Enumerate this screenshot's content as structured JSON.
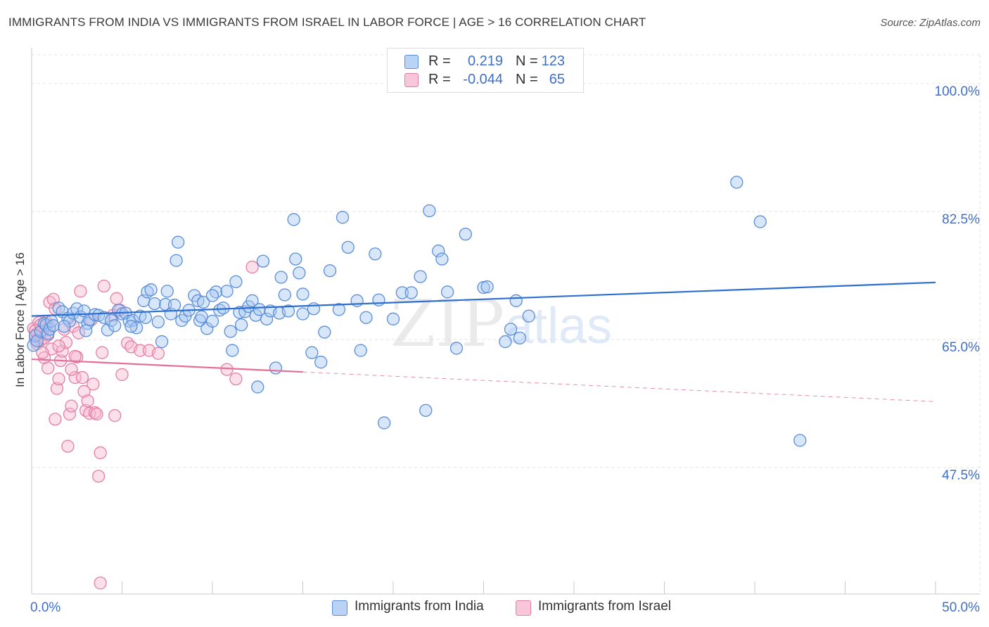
{
  "title": "IMMIGRANTS FROM INDIA VS IMMIGRANTS FROM ISRAEL IN LABOR FORCE | AGE > 16 CORRELATION CHART",
  "source": "Source: ZipAtlas.com",
  "watermark": {
    "zip": "ZIP",
    "atlas": "atlas"
  },
  "legend_top": [
    {
      "r_label": "R =",
      "r_value": "0.219",
      "n_label": "N =",
      "n_value": "123"
    },
    {
      "r_label": "R =",
      "r_value": "-0.044",
      "n_label": "N =",
      "n_value": "65"
    }
  ],
  "colors": {
    "india_fill": "#a9c8f5",
    "india_stroke": "#5b8ed8",
    "india_line": "#2d6fd0",
    "israel_fill": "#f6b8cf",
    "israel_stroke": "#e57fa5",
    "israel_line": "#e4709a",
    "axis_label": "#3d6fd0",
    "grid": "#e3e3e3"
  },
  "chart_data": {
    "type": "scatter",
    "title": "IMMIGRANTS FROM INDIA VS IMMIGRANTS FROM ISRAEL IN LABOR FORCE | AGE > 16 CORRELATION CHART",
    "xlabel": "",
    "ylabel": "In Labor Force | Age > 16",
    "xlim": [
      0,
      50
    ],
    "ylim": [
      30.2,
      104.5
    ],
    "x_tick_labels": [
      "0.0%",
      "50.0%"
    ],
    "y_ticks": [
      47.5,
      65.0,
      82.5,
      100.0
    ],
    "y_tick_labels": [
      "47.5%",
      "65.0%",
      "82.5%",
      "100.0%"
    ],
    "grid": true,
    "legend_placement": "bottom",
    "series": [
      {
        "name": "Immigrants from India",
        "color": "#a9c8f5",
        "trend": {
          "x": [
            0,
            50
          ],
          "y": [
            68.2,
            72.8
          ],
          "dashed_from": null
        },
        "points": [
          [
            0.1,
            64.2
          ],
          [
            0.2,
            65.5
          ],
          [
            0.3,
            64.8
          ],
          [
            0.5,
            66.1
          ],
          [
            0.7,
            67.2
          ],
          [
            0.8,
            67.0
          ],
          [
            0.9,
            65.8
          ],
          [
            1.0,
            66.4
          ],
          [
            1.1,
            67.5
          ],
          [
            1.2,
            66.9
          ],
          [
            1.5,
            69.3
          ],
          [
            1.7,
            68.8
          ],
          [
            2.0,
            67.9
          ],
          [
            2.1,
            67.5
          ],
          [
            2.3,
            68.6
          ],
          [
            2.5,
            69.2
          ],
          [
            2.7,
            68.1
          ],
          [
            2.9,
            68.9
          ],
          [
            3.1,
            67.2
          ],
          [
            3.2,
            67.7
          ],
          [
            3.5,
            68.4
          ],
          [
            3.7,
            68.3
          ],
          [
            4.0,
            68.0
          ],
          [
            4.2,
            66.3
          ],
          [
            4.4,
            67.6
          ],
          [
            4.6,
            66.9
          ],
          [
            4.8,
            69.0
          ],
          [
            5.0,
            68.5
          ],
          [
            5.2,
            68.6
          ],
          [
            5.4,
            67.5
          ],
          [
            5.6,
            67.6
          ],
          [
            5.8,
            66.6
          ],
          [
            6.0,
            68.2
          ],
          [
            6.2,
            70.3
          ],
          [
            6.4,
            71.5
          ],
          [
            6.6,
            71.8
          ],
          [
            6.8,
            69.9
          ],
          [
            7.0,
            67.4
          ],
          [
            7.2,
            64.7
          ],
          [
            7.4,
            69.8
          ],
          [
            7.5,
            71.6
          ],
          [
            7.7,
            68.5
          ],
          [
            7.9,
            69.7
          ],
          [
            8.0,
            75.8
          ],
          [
            8.1,
            78.3
          ],
          [
            8.3,
            67.6
          ],
          [
            8.5,
            68.2
          ],
          [
            8.7,
            69.0
          ],
          [
            9.0,
            71.0
          ],
          [
            9.2,
            70.3
          ],
          [
            9.3,
            67.6
          ],
          [
            9.4,
            68.1
          ],
          [
            9.5,
            70.1
          ],
          [
            9.7,
            66.5
          ],
          [
            10.0,
            67.5
          ],
          [
            10.2,
            71.5
          ],
          [
            10.4,
            69.0
          ],
          [
            10.6,
            69.3
          ],
          [
            10.8,
            71.6
          ],
          [
            11.0,
            66.1
          ],
          [
            11.1,
            63.5
          ],
          [
            11.3,
            72.9
          ],
          [
            11.5,
            68.7
          ],
          [
            11.8,
            68.8
          ],
          [
            12.0,
            69.5
          ],
          [
            12.2,
            70.3
          ],
          [
            12.4,
            68.3
          ],
          [
            12.6,
            69.1
          ],
          [
            12.8,
            75.7
          ],
          [
            13.0,
            67.8
          ],
          [
            13.2,
            68.9
          ],
          [
            13.5,
            61.1
          ],
          [
            13.7,
            68.6
          ],
          [
            13.8,
            73.5
          ],
          [
            14.0,
            71.1
          ],
          [
            14.2,
            68.9
          ],
          [
            14.5,
            81.4
          ],
          [
            14.6,
            76.0
          ],
          [
            14.8,
            74.1
          ],
          [
            15.0,
            71.2
          ],
          [
            15.5,
            63.2
          ],
          [
            15.6,
            69.2
          ],
          [
            16.0,
            61.9
          ],
          [
            16.5,
            74.4
          ],
          [
            17.0,
            69.1
          ],
          [
            17.2,
            81.7
          ],
          [
            17.5,
            77.6
          ],
          [
            18.0,
            70.3
          ],
          [
            18.2,
            63.5
          ],
          [
            19.0,
            76.7
          ],
          [
            19.2,
            70.4
          ],
          [
            19.5,
            53.6
          ],
          [
            20.5,
            71.4
          ],
          [
            21.0,
            71.4
          ],
          [
            21.5,
            73.6
          ],
          [
            21.8,
            55.3
          ],
          [
            22.0,
            82.6
          ],
          [
            22.5,
            77.1
          ],
          [
            22.7,
            76.0
          ],
          [
            23.5,
            63.8
          ],
          [
            24.0,
            79.4
          ],
          [
            25.0,
            72.1
          ],
          [
            25.2,
            72.2
          ],
          [
            26.2,
            64.7
          ],
          [
            26.5,
            66.4
          ],
          [
            26.8,
            70.3
          ],
          [
            27.0,
            65.2
          ],
          [
            27.5,
            68.2
          ],
          [
            39.0,
            86.5
          ],
          [
            40.3,
            81.1
          ],
          [
            42.5,
            51.2
          ],
          [
            12.5,
            58.5
          ],
          [
            15.0,
            68.5
          ],
          [
            18.5,
            68.0
          ],
          [
            10.0,
            71.0
          ],
          [
            23.0,
            71.5
          ],
          [
            16.2,
            66.0
          ],
          [
            20.0,
            67.8
          ],
          [
            5.5,
            66.8
          ],
          [
            3.0,
            66.2
          ],
          [
            1.8,
            66.8
          ],
          [
            11.6,
            67.0
          ],
          [
            6.3,
            68.0
          ]
        ]
      },
      {
        "name": "Immigrants from Israel",
        "color": "#f6b8cf",
        "trend": {
          "x": [
            0,
            50
          ],
          "y": [
            62.3,
            56.5
          ],
          "dashed_from": 15
        },
        "points": [
          [
            0.1,
            66.5
          ],
          [
            0.2,
            65.0
          ],
          [
            0.3,
            65.8
          ],
          [
            0.4,
            67.3
          ],
          [
            0.5,
            64.9
          ],
          [
            0.6,
            66.0
          ],
          [
            0.7,
            62.5
          ],
          [
            0.8,
            67.4
          ],
          [
            0.9,
            65.6
          ],
          [
            1.0,
            70.1
          ],
          [
            1.1,
            63.7
          ],
          [
            1.2,
            70.5
          ],
          [
            1.3,
            69.2
          ],
          [
            1.4,
            58.3
          ],
          [
            1.5,
            59.6
          ],
          [
            1.6,
            62.1
          ],
          [
            1.7,
            63.4
          ],
          [
            1.8,
            66.4
          ],
          [
            1.9,
            64.6
          ],
          [
            2.0,
            50.4
          ],
          [
            2.1,
            54.8
          ],
          [
            2.2,
            55.9
          ],
          [
            2.3,
            66.8
          ],
          [
            2.4,
            59.8
          ],
          [
            2.5,
            62.6
          ],
          [
            2.6,
            65.9
          ],
          [
            2.7,
            71.6
          ],
          [
            2.8,
            59.8
          ],
          [
            2.9,
            57.9
          ],
          [
            3.0,
            55.3
          ],
          [
            3.1,
            56.6
          ],
          [
            3.2,
            54.9
          ],
          [
            3.3,
            67.7
          ],
          [
            3.4,
            58.9
          ],
          [
            3.5,
            55.0
          ],
          [
            3.6,
            54.8
          ],
          [
            3.7,
            46.3
          ],
          [
            3.8,
            49.5
          ],
          [
            3.9,
            63.2
          ],
          [
            4.0,
            72.3
          ],
          [
            4.5,
            68.3
          ],
          [
            4.6,
            54.6
          ],
          [
            4.7,
            70.6
          ],
          [
            5.0,
            60.2
          ],
          [
            5.3,
            64.5
          ],
          [
            5.5,
            64.0
          ],
          [
            6.0,
            63.5
          ],
          [
            6.5,
            63.5
          ],
          [
            7.0,
            63.1
          ],
          [
            10.8,
            60.9
          ],
          [
            11.3,
            59.6
          ],
          [
            12.2,
            74.9
          ],
          [
            0.3,
            64.4
          ],
          [
            0.9,
            61.1
          ],
          [
            1.5,
            64.1
          ],
          [
            2.2,
            60.9
          ],
          [
            2.4,
            62.7
          ],
          [
            0.5,
            67.0
          ],
          [
            0.6,
            63.2
          ],
          [
            1.0,
            66.8
          ],
          [
            3.8,
            31.7
          ],
          [
            1.3,
            54.1
          ],
          [
            0.7,
            65.2
          ],
          [
            0.2,
            66.2
          ],
          [
            4.9,
            69.0
          ]
        ]
      }
    ]
  },
  "y_axis_label": "In Labor Force | Age > 16",
  "x_axis": {
    "left_label": "0.0%",
    "right_label": "50.0%"
  },
  "bottom_legend": [
    {
      "label": "Immigrants from India"
    },
    {
      "label": "Immigrants from Israel"
    }
  ]
}
